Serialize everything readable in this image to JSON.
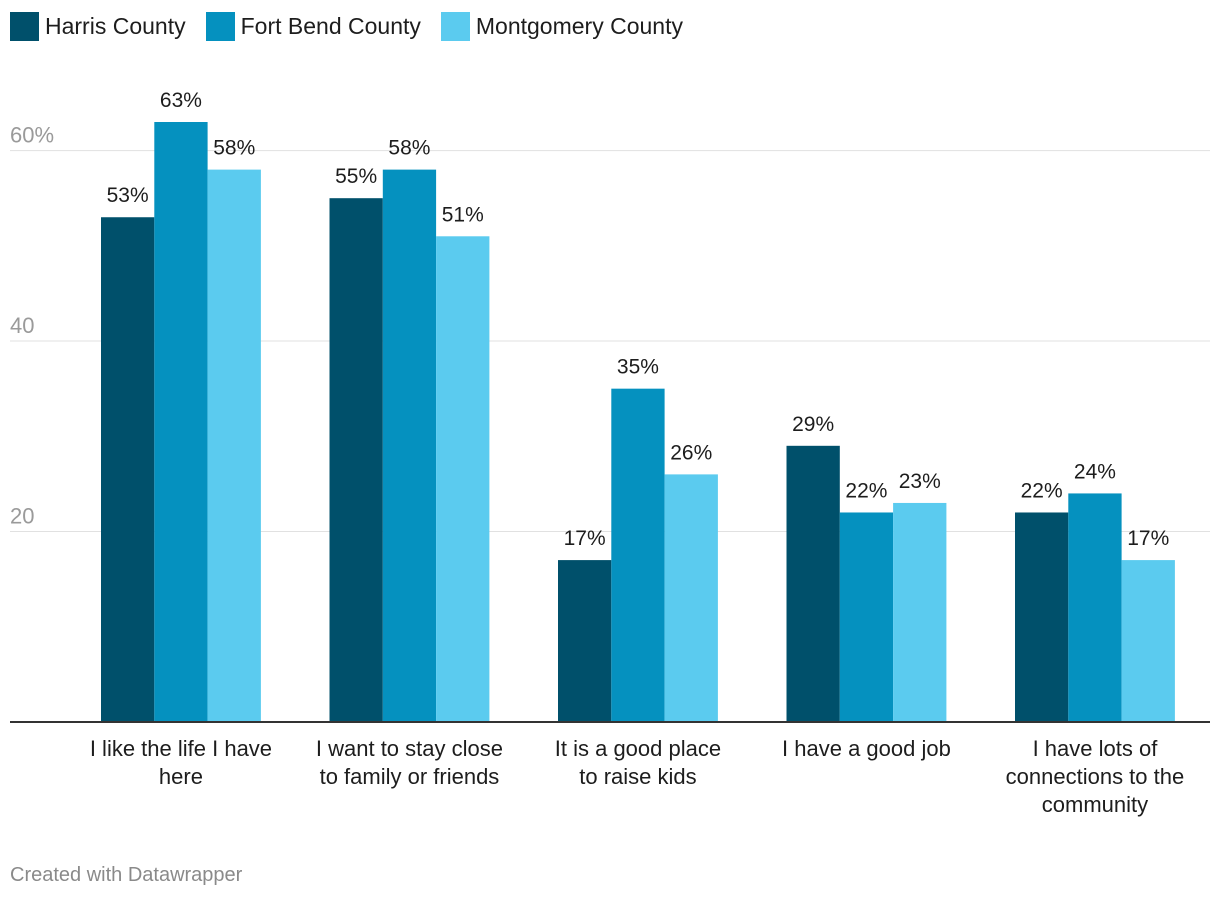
{
  "chart_data": {
    "type": "bar",
    "title": "",
    "xlabel": "",
    "ylabel": "",
    "ylim": [
      0,
      63
    ],
    "y_ticks": [
      {
        "value": 20,
        "label": "20"
      },
      {
        "value": 40,
        "label": "40"
      },
      {
        "value": 60,
        "label": "60%"
      }
    ],
    "grid": true,
    "legend_position": "top-left",
    "categories": [
      [
        "I like the life I have",
        "here"
      ],
      [
        "I want to stay close",
        "to family or friends"
      ],
      [
        "It is a good place",
        "to raise kids"
      ],
      [
        "I have a good job"
      ],
      [
        "I have lots of",
        "connections to the",
        "community"
      ]
    ],
    "series": [
      {
        "name": "Harris County",
        "color": "#00506b",
        "values": [
          53,
          55,
          17,
          29,
          22
        ]
      },
      {
        "name": "Fort Bend County",
        "color": "#0591bf",
        "values": [
          63,
          58,
          35,
          22,
          24
        ]
      },
      {
        "name": "Montgomery County",
        "color": "#5bcbef",
        "values": [
          58,
          51,
          26,
          23,
          17
        ]
      }
    ],
    "value_suffix": "%"
  },
  "footer": {
    "credit": "Created with Datawrapper"
  }
}
